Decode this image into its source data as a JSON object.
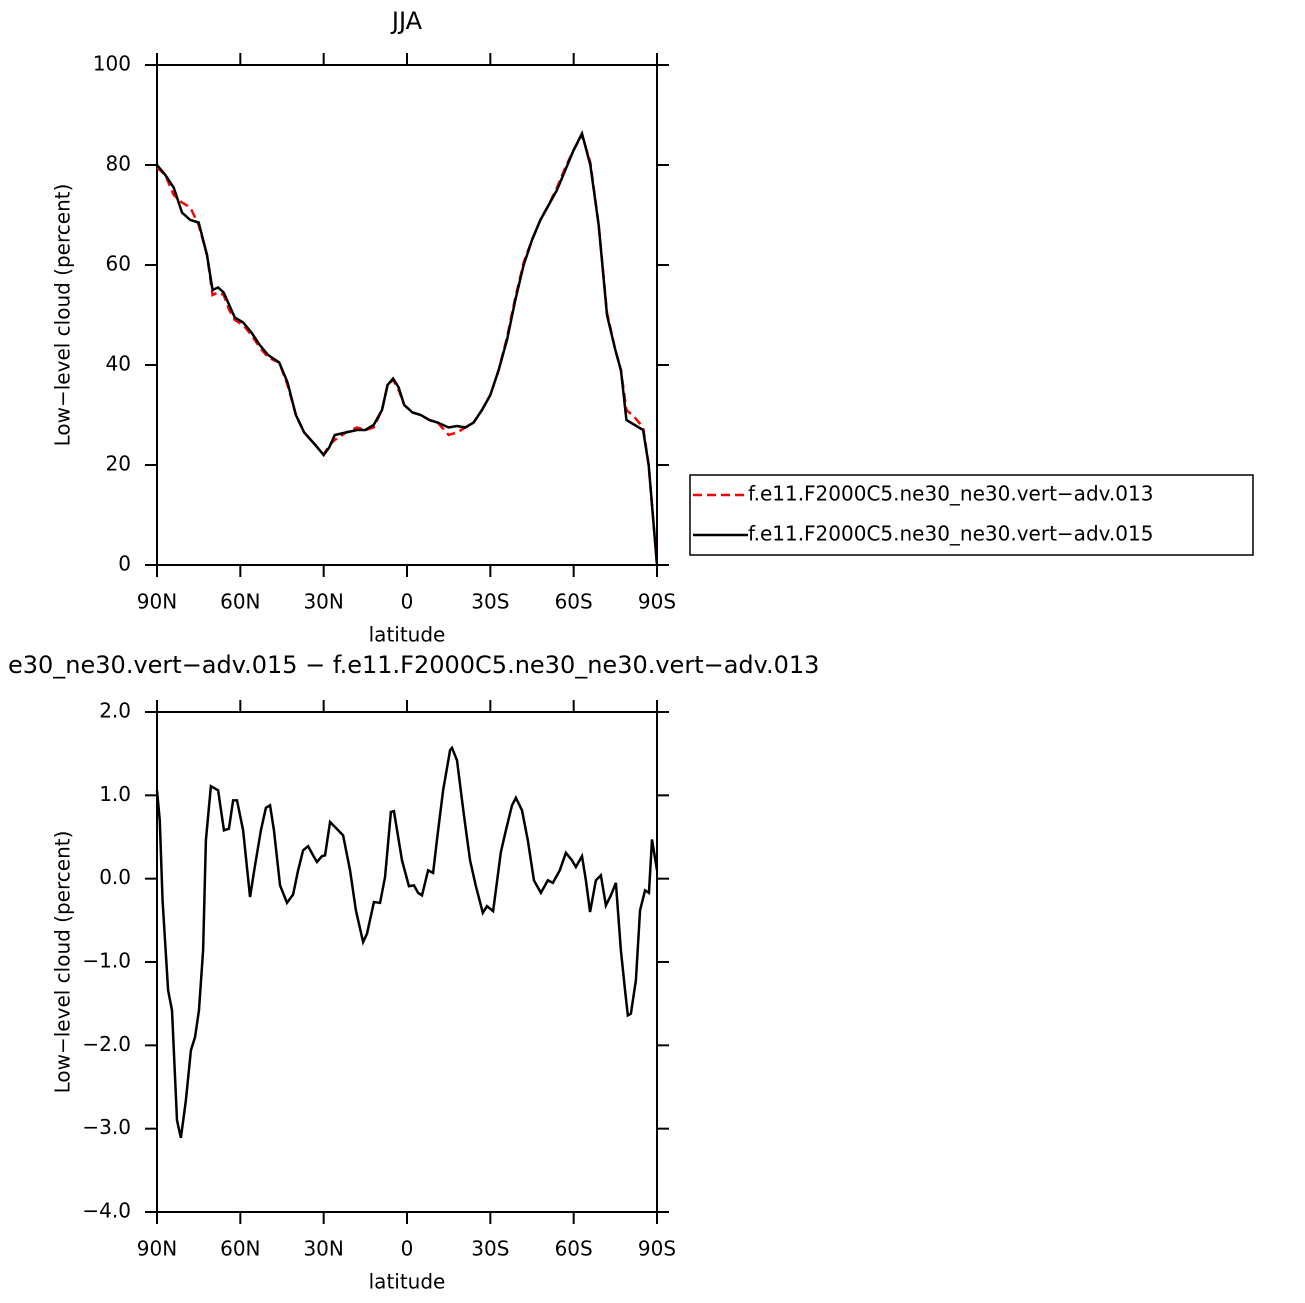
{
  "chart_data": [
    {
      "type": "line",
      "title": "JJA",
      "xlabel": "latitude",
      "ylabel": "Low−level cloud (percent)",
      "x": [
        90,
        87,
        84,
        81,
        78,
        75,
        72,
        70,
        68,
        66,
        64,
        62,
        59,
        56,
        53,
        50,
        46,
        43,
        40,
        37,
        33,
        30,
        28,
        26,
        22,
        18,
        15,
        12,
        9,
        7,
        5,
        3,
        1,
        -2,
        -5,
        -8,
        -11,
        -15,
        -18,
        -21,
        -24,
        -27,
        -30,
        -33,
        -36,
        -39,
        -42,
        -45,
        -48,
        -51,
        -54,
        -57,
        -60,
        -63,
        -66,
        -69,
        -72,
        -75,
        -77,
        -79,
        -82,
        -85,
        -87,
        -90
      ],
      "xlim": [
        90,
        -90
      ],
      "xticks": [
        {
          "value": 90,
          "label": "90N"
        },
        {
          "value": 60,
          "label": "60N"
        },
        {
          "value": 30,
          "label": "30N"
        },
        0,
        {
          "value": -30,
          "label": "30S"
        },
        {
          "value": -60,
          "label": "60S"
        },
        {
          "value": -90,
          "label": "90S"
        }
      ],
      "ylim": [
        0,
        100
      ],
      "yticks": [
        0,
        20,
        40,
        60,
        80,
        100
      ],
      "series": [
        {
          "name": "f.e11.F2000C5.ne30_ne30.vert−adv.013",
          "color": "#ff0000",
          "style": "dashed",
          "values": [
            79.5,
            78,
            74,
            72.5,
            71.5,
            68,
            62,
            54,
            54.5,
            54,
            51,
            49,
            48,
            46,
            43.5,
            41.5,
            40.5,
            36,
            30,
            26.5,
            24,
            22,
            24,
            25,
            26.5,
            27.5,
            27,
            27.5,
            31,
            36,
            37,
            35,
            32,
            30.5,
            30,
            29,
            28.5,
            26,
            26.5,
            27.5,
            28.5,
            31,
            34,
            39,
            45.5,
            53.5,
            60.5,
            65,
            69,
            72,
            75.5,
            79.5,
            83,
            86,
            80.5,
            68,
            50.5,
            43,
            39,
            31,
            29.5,
            27.5,
            20,
            0
          ]
        },
        {
          "name": "f.e11.F2000C5.ne30_ne30.vert−adv.015",
          "color": "#000000",
          "style": "solid",
          "values": [
            80,
            78,
            75.5,
            70.5,
            69,
            68.5,
            62,
            55,
            55.5,
            54.5,
            52,
            49.5,
            48.5,
            46.5,
            44,
            42,
            40.5,
            36.5,
            30,
            26.5,
            24,
            22,
            23.5,
            26,
            26.5,
            27,
            27,
            28,
            31,
            36,
            37.3,
            35.5,
            32,
            30.5,
            30,
            29,
            28.5,
            27.5,
            27.8,
            27.5,
            28.5,
            31,
            34,
            39,
            45,
            53,
            60,
            65,
            69,
            72,
            75,
            79,
            83,
            86.3,
            80,
            68,
            50,
            43,
            39,
            29,
            28,
            27,
            20,
            0
          ]
        }
      ]
    },
    {
      "type": "line",
      "title": "e30_ne30.vert−adv.015 − f.e11.F2000C5.ne30_ne30.vert−adv.013",
      "xlabel": "latitude",
      "ylabel": "Low−level cloud (percent)",
      "x": [
        90,
        89,
        88,
        86,
        84.6,
        82.8,
        81.4,
        79.6,
        77.8,
        76.3,
        74.9,
        73.4,
        72.4,
        70.6,
        68,
        65.9,
        64.1,
        62.6,
        61.2,
        59,
        56.5,
        55,
        52.6,
        50.8,
        49.3,
        47.9,
        45.7,
        43.2,
        41,
        39.2,
        37.4,
        35.6,
        33.8,
        32.4,
        30.6,
        29.5,
        27.7,
        25.6,
        23,
        20.5,
        18.4,
        15.8,
        14.4,
        11.9,
        9.7,
        7.9,
        5.8,
        4.7,
        1.8,
        -0.7,
        -2.5,
        -4,
        -5.4,
        -7.6,
        -9.4,
        -10.8,
        -13,
        -15.5,
        -16.2,
        -18,
        -20.5,
        -22.7,
        -24.8,
        -27.3,
        -28.8,
        -31,
        -33.8,
        -35.6,
        -37.8,
        -39.2,
        -41.4,
        -43.5,
        -45.7,
        -48.2,
        -50.7,
        -52.5,
        -55,
        -57.2,
        -59.4,
        -60.8,
        -63,
        -64.4,
        -65.9,
        -68,
        -69.8,
        -71.6,
        -73.4,
        -75.2,
        -77,
        -78.5,
        -79.5,
        -80.6,
        -82.4,
        -83.9,
        -85.7,
        -87.1,
        -88.2,
        -90
      ],
      "xlim": [
        90,
        -90
      ],
      "xticks": [
        {
          "value": 90,
          "label": "90N"
        },
        {
          "value": 60,
          "label": "60N"
        },
        {
          "value": 30,
          "label": "30N"
        },
        0,
        {
          "value": -30,
          "label": "30S"
        },
        {
          "value": -60,
          "label": "60S"
        },
        {
          "value": -90,
          "label": "90S"
        }
      ],
      "ylim": [
        -4,
        2
      ],
      "yticks": [
        {
          "value": -4,
          "label": "−4.0"
        },
        {
          "value": -3,
          "label": "−3.0"
        },
        {
          "value": -2,
          "label": "−2.0"
        },
        {
          "value": -1,
          "label": "−1.0"
        },
        {
          "value": 0,
          "label": "0.0"
        },
        {
          "value": 1,
          "label": "1.0"
        },
        {
          "value": 2,
          "label": "2.0"
        }
      ],
      "series": [
        {
          "color": "#000000",
          "style": "solid",
          "values": [
            1.06,
            0.7,
            -0.26,
            -1.34,
            -1.58,
            -2.9,
            -3.11,
            -2.66,
            -2.06,
            -1.9,
            -1.58,
            -0.86,
            0.46,
            1.11,
            1.06,
            0.58,
            0.6,
            0.94,
            0.94,
            0.58,
            -0.22,
            0.1,
            0.58,
            0.85,
            0.88,
            0.58,
            -0.08,
            -0.29,
            -0.19,
            0.1,
            0.34,
            0.39,
            0.28,
            0.2,
            0.27,
            0.28,
            0.68,
            0.61,
            0.52,
            0.1,
            -0.38,
            -0.76,
            -0.66,
            -0.28,
            -0.29,
            0.02,
            0.8,
            0.81,
            0.22,
            -0.09,
            -0.08,
            -0.17,
            -0.2,
            0.1,
            0.07,
            0.47,
            1.06,
            1.54,
            1.57,
            1.42,
            0.76,
            0.22,
            -0.09,
            -0.41,
            -0.33,
            -0.39,
            0.32,
            0.58,
            0.88,
            0.97,
            0.82,
            0.46,
            -0.02,
            -0.17,
            -0.02,
            -0.05,
            0.1,
            0.31,
            0.22,
            0.14,
            0.27,
            -0.02,
            -0.4,
            -0.02,
            0.04,
            -0.32,
            -0.2,
            -0.05,
            -0.86,
            -1.34,
            -1.64,
            -1.62,
            -1.22,
            -0.38,
            -0.14,
            -0.17,
            0.47,
            0.1
          ]
        }
      ]
    }
  ]
}
